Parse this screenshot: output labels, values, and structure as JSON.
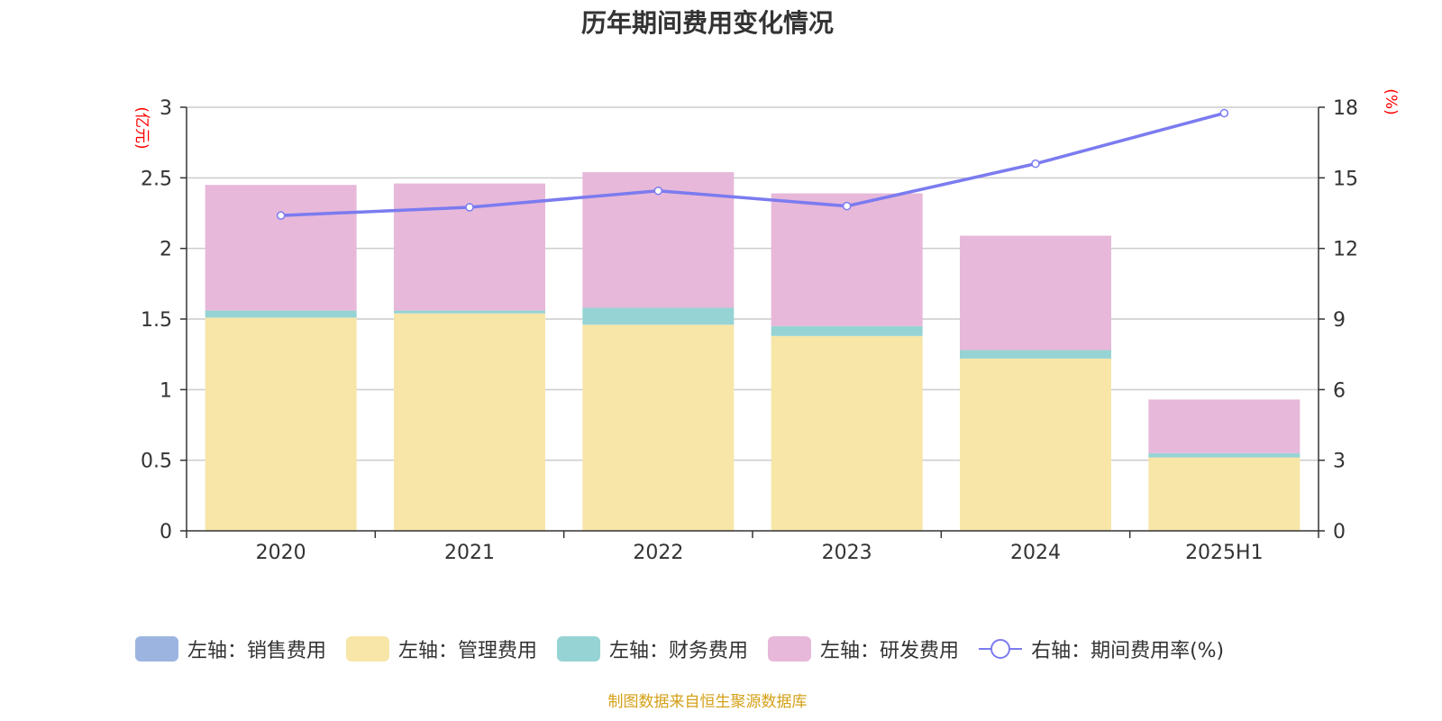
{
  "chart_data": {
    "type": "bar",
    "title": "历年期间费用变化情况",
    "categories": [
      "2020",
      "2021",
      "2022",
      "2023",
      "2024",
      "2025H1"
    ],
    "left_axis": {
      "unit": "(亿元)",
      "ylim": [
        0,
        3
      ],
      "ticks": [
        "0",
        "0.5",
        "1",
        "1.5",
        "2",
        "2.5",
        "3"
      ]
    },
    "right_axis": {
      "unit": "(%)",
      "ylim": [
        0,
        18
      ],
      "ticks": [
        "0",
        "3",
        "6",
        "9",
        "12",
        "15",
        "18"
      ]
    },
    "grid": true,
    "legend_placement": "bottom",
    "series": [
      {
        "name": "左轴：销售费用",
        "type": "bar",
        "stack": "left",
        "color": "#9bb5e0",
        "values": [
          0,
          0,
          0,
          0,
          0,
          0
        ]
      },
      {
        "name": "左轴：管理费用",
        "type": "bar",
        "stack": "left",
        "color": "#f7e6a8",
        "values": [
          1.51,
          1.54,
          1.46,
          1.38,
          1.22,
          0.52
        ]
      },
      {
        "name": "左轴：财务费用",
        "type": "bar",
        "stack": "left",
        "color": "#96d3d4",
        "values": [
          0.05,
          0.02,
          0.12,
          0.07,
          0.06,
          0.03
        ]
      },
      {
        "name": "左轴：研发费用",
        "type": "bar",
        "stack": "left",
        "color": "#e7b8d9",
        "values": [
          0.89,
          0.9,
          0.96,
          0.94,
          0.81,
          0.38
        ]
      },
      {
        "name": "右轴：期间费用率(%)",
        "type": "line",
        "axis": "right",
        "color": "#7b7bf0",
        "values": [
          13.4,
          13.75,
          14.45,
          13.8,
          15.6,
          17.75
        ]
      }
    ],
    "source": "制图数据来自恒生聚源数据库"
  }
}
